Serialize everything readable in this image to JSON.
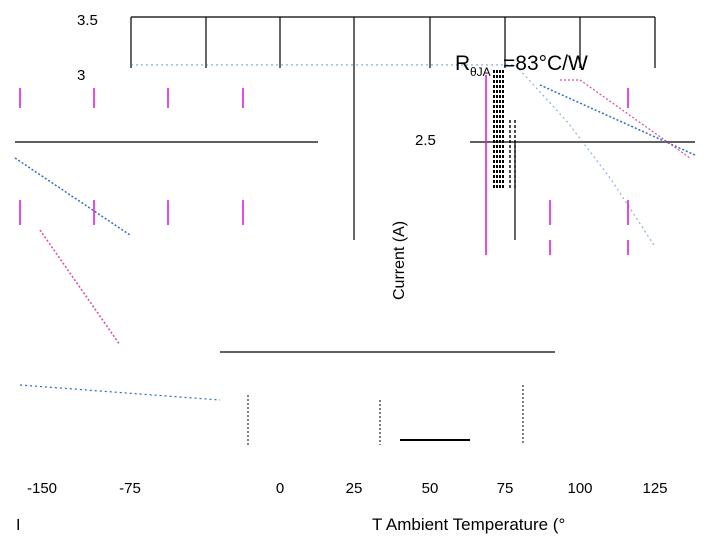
{
  "chart_data": {
    "type": "line",
    "title": "",
    "annotation_prefix": "R",
    "annotation_subscript": "θJA",
    "annotation_value": "=83°C/W",
    "ylabel": "Current (A)",
    "ylabel_left": "I",
    "xlabel": "T  Ambient Temperature (°",
    "xlabel_prefix": "T",
    "x_ticks": [
      "-150",
      "-75",
      "0",
      "25",
      "50",
      "75",
      "100",
      "125"
    ],
    "y_ticks": [
      "3.5",
      "3",
      "2.5"
    ],
    "xlim": [
      -150,
      150
    ],
    "ylim": [
      0,
      3.5
    ],
    "grid": true,
    "series": [
      {
        "x": [
          -150,
          -75,
          0,
          25,
          50,
          70,
          100,
          125,
          150
        ],
        "values": [
          3.0,
          3.0,
          3.0,
          3.0,
          3.0,
          3.0,
          2.4,
          1.8,
          1.1
        ]
      }
    ],
    "colors": {
      "line": "#2b6fc9",
      "marker": "#e01ee0",
      "grid": "#000000"
    }
  }
}
